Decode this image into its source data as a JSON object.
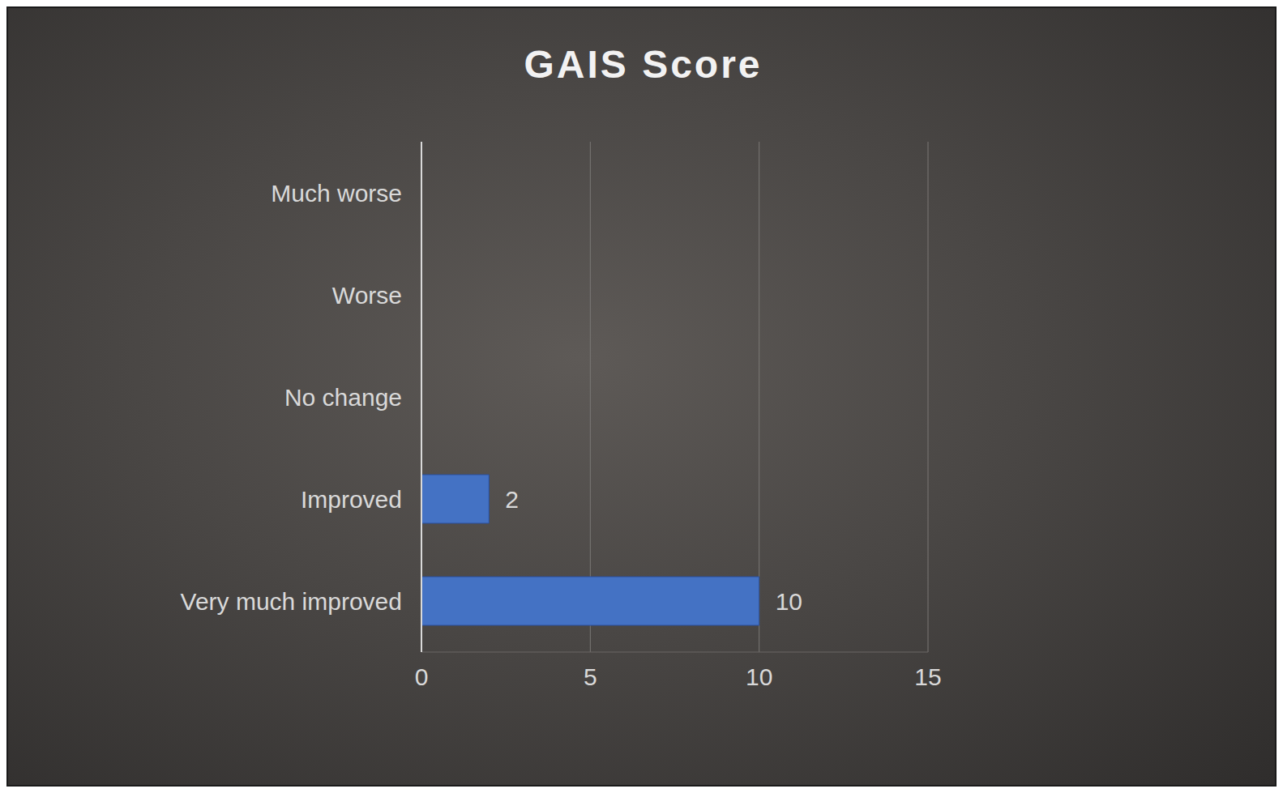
{
  "chart_data": {
    "type": "bar",
    "title": "GAIS Score",
    "orientation": "horizontal",
    "categories": [
      "Much worse",
      "Worse",
      "No change",
      "Improved",
      "Very much improved"
    ],
    "values": [
      0,
      0,
      0,
      2,
      10
    ],
    "color": "#4472c4",
    "xlim": [
      0,
      15
    ],
    "xticks": [
      0,
      5,
      10,
      15
    ],
    "grid": true,
    "data_labels": true
  }
}
